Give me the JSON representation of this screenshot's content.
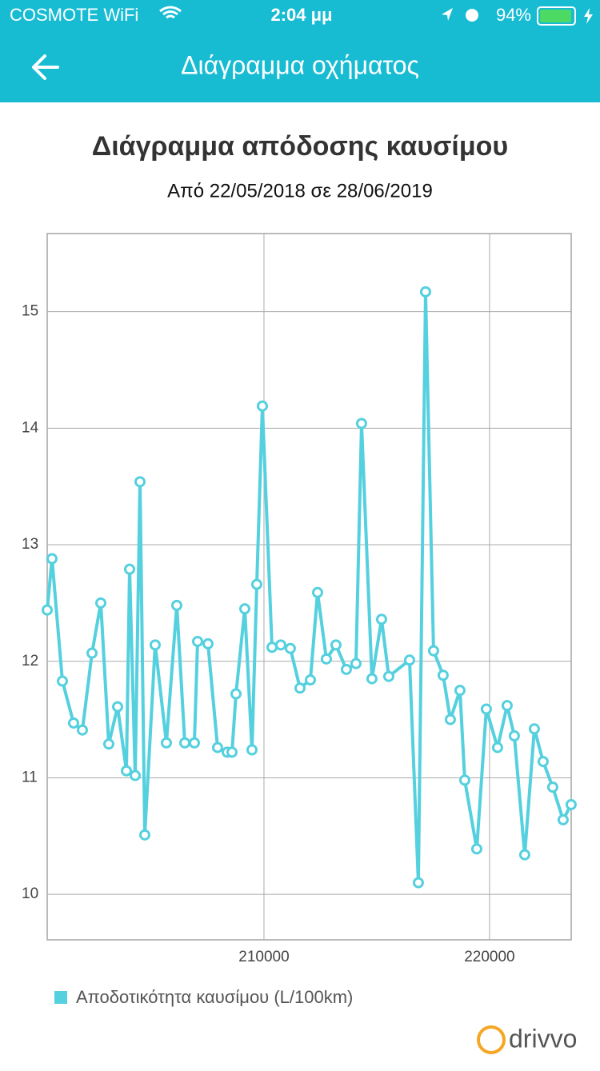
{
  "status_bar": {
    "carrier": "COSMOTE WiFi",
    "time": "2:04 μμ",
    "battery": "94%"
  },
  "header": {
    "title": "Διάγραμμα οχήματος"
  },
  "chart_data": {
    "type": "line",
    "title": "Διάγραμμα απόδοσης καυσίμου",
    "subtitle": "Από 22/05/2018 σε 28/06/2019",
    "x": [
      200390,
      200603,
      201064,
      201560,
      201950,
      202376,
      202766,
      203120,
      203511,
      203901,
      204043,
      204291,
      204504,
      204716,
      205177,
      205674,
      206135,
      206490,
      206915,
      207057,
      207518,
      207943,
      208369,
      208582,
      208759,
      209149,
      209468,
      209681,
      209929,
      210355,
      210745,
      211170,
      211596,
      212057,
      212376,
      212766,
      213191,
      213652,
      214078,
      214326,
      214787,
      215213,
      215532,
      216454,
      216844,
      217163,
      217518,
      217943,
      218262,
      218688,
      218901,
      219433,
      219858,
      220355,
      220780,
      221099,
      221560,
      221986,
      222376,
      222801,
      223262,
      223617
    ],
    "series": [
      {
        "name": "Αποδοτικότητα καυσίμου (L/100km)",
        "color": "#55d0de",
        "values": [
          12.44,
          12.88,
          11.83,
          11.47,
          11.41,
          12.07,
          12.5,
          11.29,
          11.61,
          11.06,
          12.79,
          11.02,
          13.54,
          10.51,
          12.14,
          11.3,
          12.48,
          11.3,
          11.3,
          12.17,
          12.15,
          11.26,
          11.22,
          11.22,
          11.72,
          12.45,
          11.24,
          12.66,
          14.19,
          12.12,
          12.14,
          12.11,
          11.77,
          11.84,
          12.59,
          12.02,
          12.14,
          11.93,
          11.98,
          14.04,
          11.85,
          12.36,
          11.87,
          12.01,
          10.1,
          15.17,
          12.09,
          11.88,
          11.5,
          11.75,
          10.98,
          10.39,
          11.59,
          11.26,
          11.62,
          11.36,
          10.34,
          11.42,
          11.14,
          10.92,
          10.64,
          10.77
        ]
      }
    ],
    "xlim": [
      200390,
      223620
    ],
    "ylim": [
      9.61,
      15.67
    ],
    "xticks": [
      210000,
      220000
    ],
    "yticks": [
      10,
      11,
      12,
      13,
      14,
      15
    ],
    "grid": true
  },
  "footer": {
    "logo": "drivvo"
  }
}
